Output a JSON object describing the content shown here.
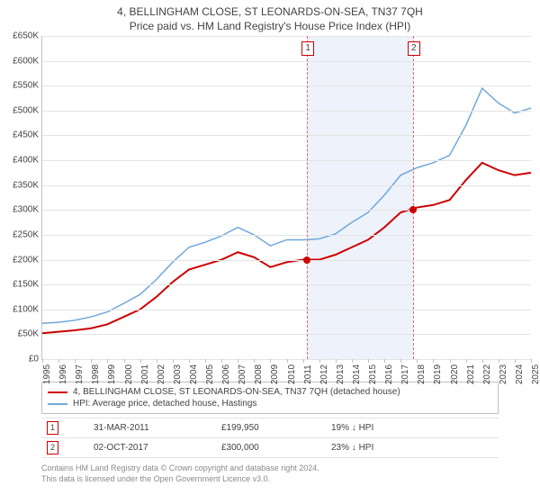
{
  "title": "4, BELLINGHAM CLOSE, ST LEONARDS-ON-SEA, TN37 7QH",
  "subtitle": "Price paid vs. HM Land Registry's House Price Index (HPI)",
  "chart": {
    "type": "line",
    "background_color": "#ffffff",
    "grid_color": "#e4e4e4",
    "axis_color": "#c0c0c0",
    "label_color": "#434343",
    "label_fontsize": 10,
    "ylim": [
      0,
      650000
    ],
    "ytick_step": 50000,
    "yticks_labels": [
      "£0",
      "£50K",
      "£100K",
      "£150K",
      "£200K",
      "£250K",
      "£300K",
      "£350K",
      "£400K",
      "£450K",
      "£500K",
      "£550K",
      "£600K",
      "£650K"
    ],
    "xlim": [
      1995,
      2025
    ],
    "xticks": [
      1995,
      1996,
      1997,
      1998,
      1999,
      2000,
      2001,
      2002,
      2003,
      2004,
      2005,
      2006,
      2007,
      2008,
      2009,
      2010,
      2011,
      2012,
      2013,
      2014,
      2015,
      2016,
      2017,
      2018,
      2019,
      2020,
      2021,
      2022,
      2023,
      2024,
      2025
    ],
    "band": {
      "start": 2011.25,
      "end": 2017.75,
      "color": "#eef2fa"
    },
    "vdash_color": "#e06666",
    "markers": [
      {
        "label": "1",
        "x": 2011.25,
        "y": 199950,
        "box_border": "#cc0000"
      },
      {
        "label": "2",
        "x": 2017.75,
        "y": 300000,
        "box_border": "#cc0000"
      }
    ],
    "series": [
      {
        "name": "price_paid",
        "legend": "4, BELLINGHAM CLOSE, ST LEONARDS-ON-SEA, TN37 7QH (detached house)",
        "color": "#cc0000",
        "line_width": 2,
        "data": [
          [
            1995,
            52000
          ],
          [
            1996,
            55000
          ],
          [
            1997,
            58000
          ],
          [
            1998,
            62000
          ],
          [
            1999,
            70000
          ],
          [
            2000,
            85000
          ],
          [
            2001,
            100000
          ],
          [
            2002,
            125000
          ],
          [
            2003,
            155000
          ],
          [
            2004,
            180000
          ],
          [
            2005,
            190000
          ],
          [
            2006,
            200000
          ],
          [
            2007,
            215000
          ],
          [
            2008,
            205000
          ],
          [
            2009,
            185000
          ],
          [
            2010,
            195000
          ],
          [
            2011,
            200000
          ],
          [
            2012,
            200000
          ],
          [
            2013,
            210000
          ],
          [
            2014,
            225000
          ],
          [
            2015,
            240000
          ],
          [
            2016,
            265000
          ],
          [
            2017,
            295000
          ],
          [
            2018,
            305000
          ],
          [
            2019,
            310000
          ],
          [
            2020,
            320000
          ],
          [
            2021,
            360000
          ],
          [
            2022,
            395000
          ],
          [
            2023,
            380000
          ],
          [
            2024,
            370000
          ],
          [
            2025,
            375000
          ]
        ],
        "dots": [
          {
            "x": 2011.25,
            "y": 199950
          },
          {
            "x": 2017.75,
            "y": 300000
          }
        ]
      },
      {
        "name": "hpi",
        "legend": "HPI: Average price, detached house, Hastings",
        "color": "#6fa8dc",
        "line_width": 1.5,
        "data": [
          [
            1995,
            72000
          ],
          [
            1996,
            74000
          ],
          [
            1997,
            78000
          ],
          [
            1998,
            85000
          ],
          [
            1999,
            95000
          ],
          [
            2000,
            112000
          ],
          [
            2001,
            130000
          ],
          [
            2002,
            160000
          ],
          [
            2003,
            195000
          ],
          [
            2004,
            225000
          ],
          [
            2005,
            235000
          ],
          [
            2006,
            248000
          ],
          [
            2007,
            265000
          ],
          [
            2008,
            250000
          ],
          [
            2009,
            228000
          ],
          [
            2010,
            240000
          ],
          [
            2011,
            240000
          ],
          [
            2012,
            242000
          ],
          [
            2013,
            252000
          ],
          [
            2014,
            275000
          ],
          [
            2015,
            295000
          ],
          [
            2016,
            330000
          ],
          [
            2017,
            370000
          ],
          [
            2018,
            385000
          ],
          [
            2019,
            395000
          ],
          [
            2020,
            410000
          ],
          [
            2021,
            470000
          ],
          [
            2022,
            545000
          ],
          [
            2023,
            515000
          ],
          [
            2024,
            495000
          ],
          [
            2025,
            505000
          ]
        ]
      }
    ]
  },
  "legend": {
    "border_color": "#c0c0c0",
    "items": [
      {
        "color": "#cc0000",
        "label": "4, BELLINGHAM CLOSE, ST LEONARDS-ON-SEA, TN37 7QH (detached house)"
      },
      {
        "color": "#6fa8dc",
        "label": "HPI: Average price, detached house, Hastings"
      }
    ]
  },
  "sales": {
    "rows": [
      {
        "num": "1",
        "date": "31-MAR-2011",
        "price": "£199,950",
        "delta": "19% ↓ HPI"
      },
      {
        "num": "2",
        "date": "02-OCT-2017",
        "price": "£300,000",
        "delta": "23% ↓ HPI"
      }
    ]
  },
  "footer": {
    "line1": "Contains HM Land Registry data © Crown copyright and database right 2024.",
    "line2": "This data is licensed under the Open Government Licence v3.0."
  }
}
